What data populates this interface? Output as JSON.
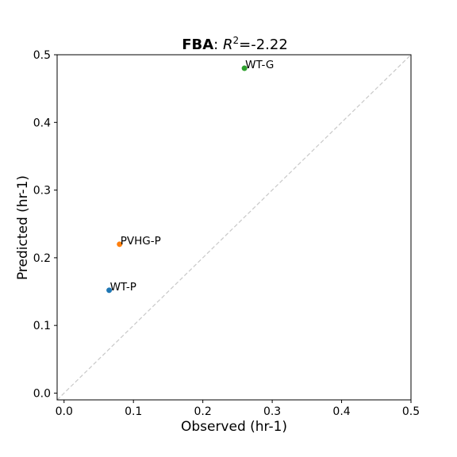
{
  "chart_data": {
    "type": "scatter",
    "title_bold": "FBA",
    "title_rest": ": ",
    "title_r2_symbol": "R",
    "title_r2_exp": "2",
    "title_r2_value": "=-2.22",
    "xlabel": "Observed (hr-1)",
    "ylabel": "Predicted (hr-1)",
    "xlim": [
      -0.01,
      0.5
    ],
    "ylim": [
      -0.01,
      0.5
    ],
    "xticks": [
      0.0,
      0.1,
      0.2,
      0.3,
      0.4,
      0.5
    ],
    "xtick_labels": [
      "0.0",
      "0.1",
      "0.2",
      "0.3",
      "0.4",
      "0.5"
    ],
    "yticks": [
      0.0,
      0.1,
      0.2,
      0.3,
      0.4,
      0.5
    ],
    "ytick_labels": [
      "0.0",
      "0.1",
      "0.2",
      "0.3",
      "0.4",
      "0.5"
    ],
    "grid": false,
    "reference_line": "y=x dashed",
    "reference_color": "#c8c8c8",
    "points": [
      {
        "label": "WT-P",
        "x": 0.065,
        "y": 0.152,
        "color": "#1f77b4"
      },
      {
        "label": "PVHG-P",
        "x": 0.08,
        "y": 0.22,
        "color": "#ff7f0e"
      },
      {
        "label": "WT-G",
        "x": 0.26,
        "y": 0.48,
        "color": "#2ca02c"
      }
    ]
  }
}
